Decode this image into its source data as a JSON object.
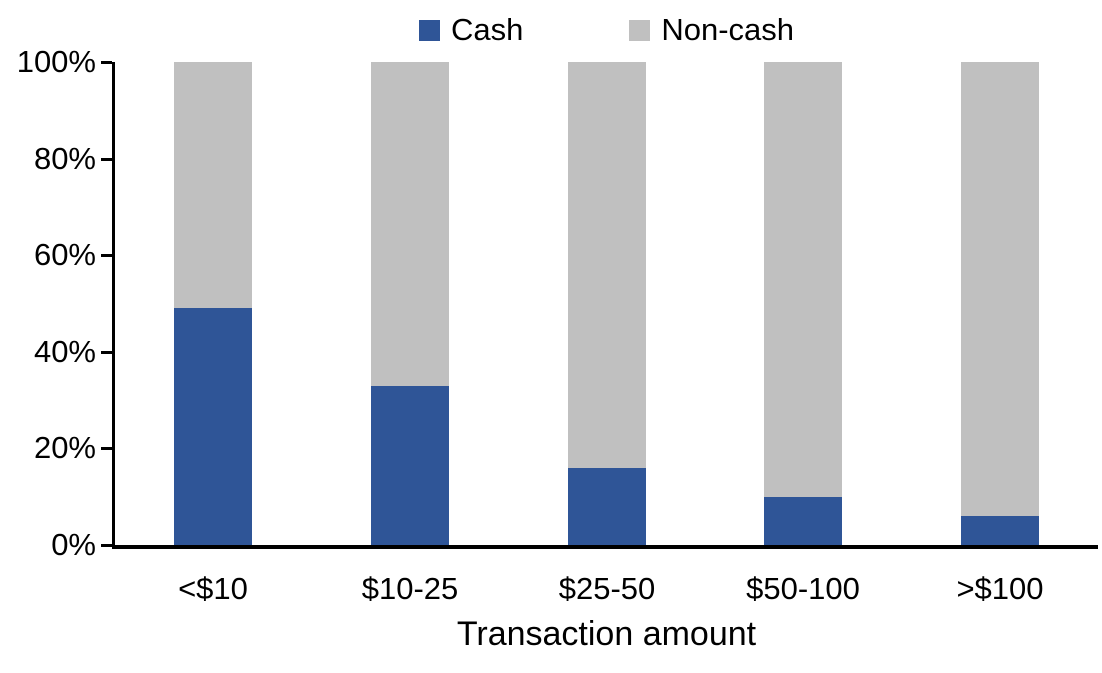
{
  "chart_data": {
    "type": "bar",
    "stacked": true,
    "percent_stacked": true,
    "title": "",
    "xlabel": "Transaction amount",
    "ylabel": "",
    "categories": [
      "<$10",
      "$10-25",
      "$25-50",
      "$50-100",
      ">$100"
    ],
    "series": [
      {
        "name": "Cash",
        "color": "#2F5597",
        "values": [
          49,
          33,
          16,
          10,
          6
        ]
      },
      {
        "name": "Non-cash",
        "color": "#C0C0C0",
        "values": [
          51,
          67,
          84,
          90,
          94
        ]
      }
    ],
    "ylim": [
      0,
      100
    ],
    "yticks": [
      "0%",
      "20%",
      "40%",
      "60%",
      "80%",
      "100%"
    ],
    "grid": false,
    "legend_position": "top-center",
    "axis_color": "#000000",
    "text_color": "#000000"
  }
}
